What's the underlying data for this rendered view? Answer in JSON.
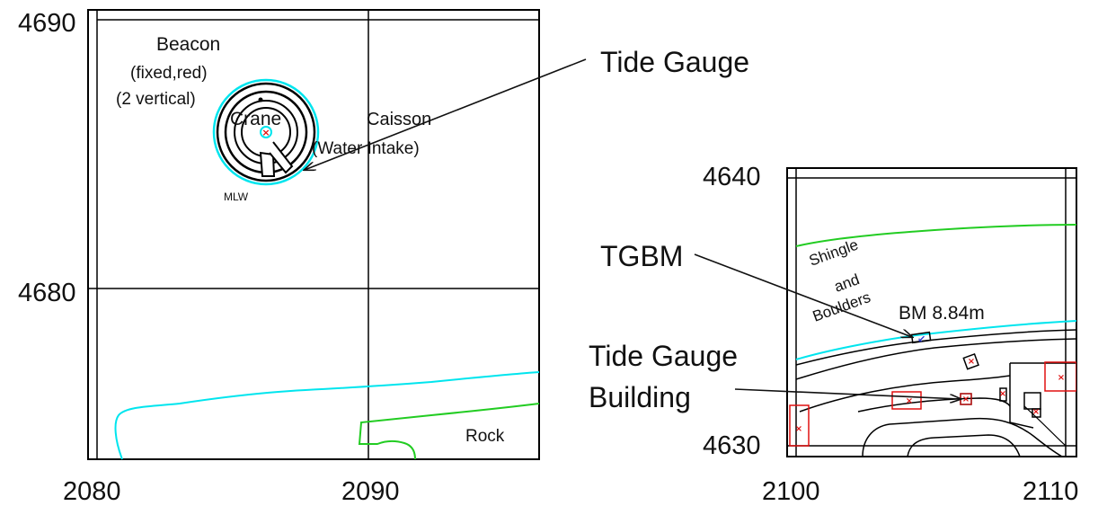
{
  "colors": {
    "frame": "#000000",
    "mlw": "#00e5ee",
    "rock": "#22cc22",
    "building": "#e01010",
    "marker": "#e01010",
    "benchmark": "#2233cc"
  },
  "left_map": {
    "y_labels": [
      "4690",
      "4680"
    ],
    "x_labels": [
      "2080",
      "2090"
    ],
    "beacon_label": "Beacon",
    "beacon_detail": "(fixed,red)",
    "beacon_vertical": "(2 vertical)",
    "crane_label": "Crane",
    "caisson_label": "Caisson",
    "water_intake_label": "(Water Intake)",
    "mlw_label": "MLW",
    "rock_label": "Rock"
  },
  "right_map": {
    "y_labels": [
      "4640",
      "4630"
    ],
    "x_labels": [
      "2100",
      "2110"
    ],
    "shingle_label": "Shingle",
    "and_label": "and",
    "boulders_label": "Boulders",
    "bm_label": "BM 8.84m"
  },
  "callouts": {
    "tide_gauge": "Tide Gauge",
    "tgbm": "TGBM",
    "tide_gauge_building_line1": "Tide Gauge",
    "tide_gauge_building_line2": "Building"
  },
  "icons": {
    "crane_marker": "red-cross-icon",
    "benchmark_marker": "blue-arrow-icon"
  }
}
